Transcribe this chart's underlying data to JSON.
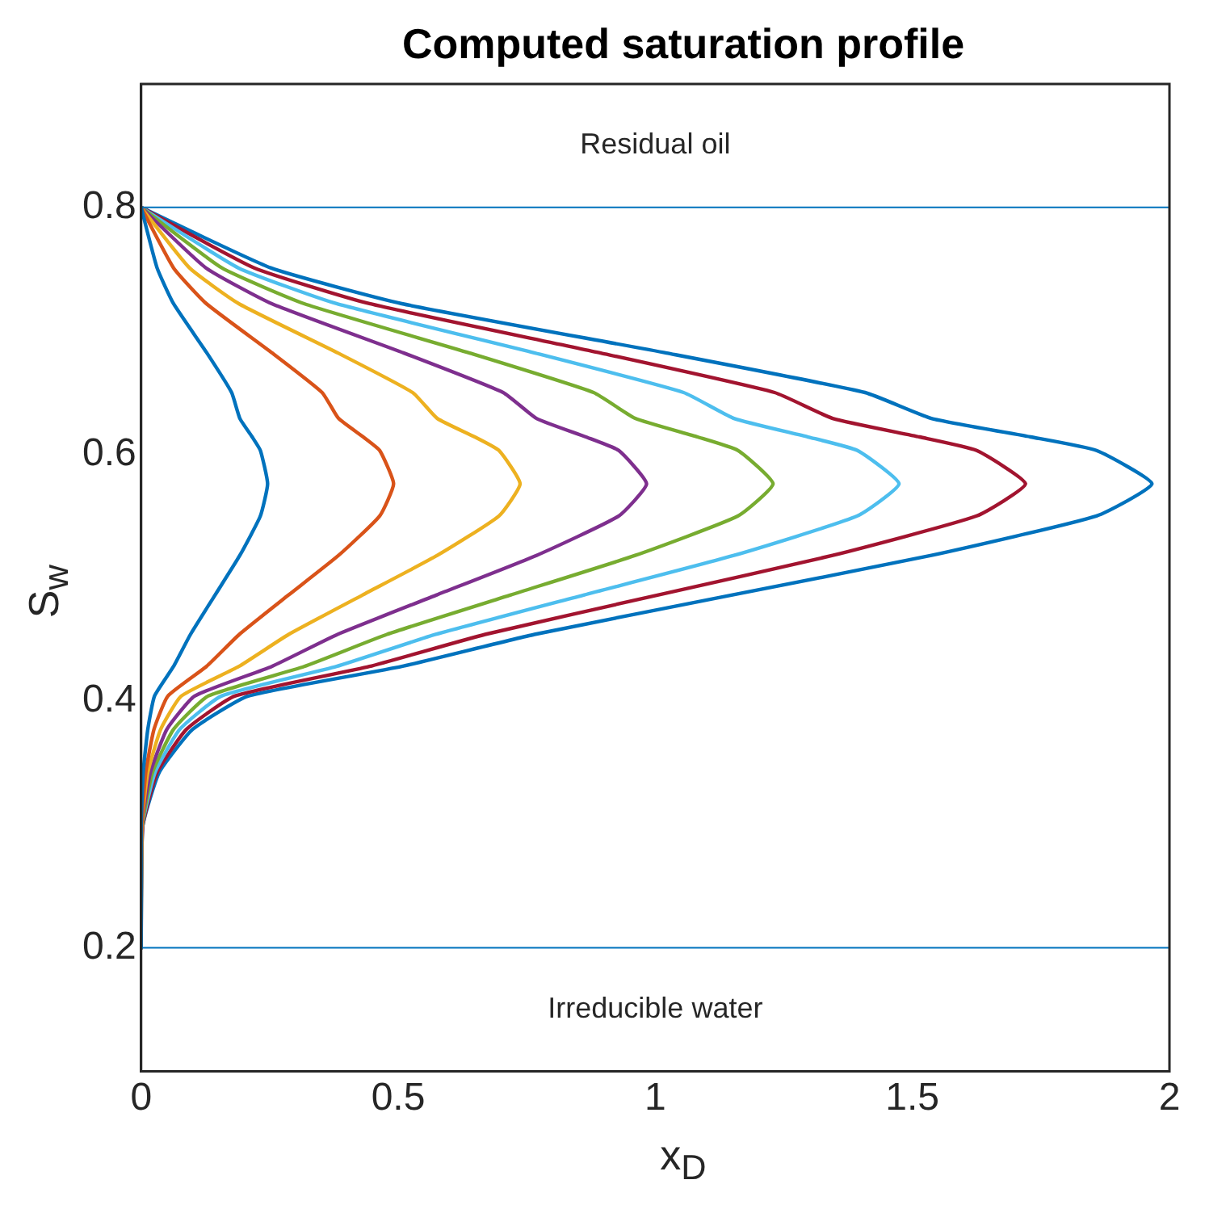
{
  "chart_data": {
    "type": "line",
    "title": "Computed saturation profile",
    "xlabel": "x$_{D}$",
    "ylabel": "S$_{w}$",
    "xlim": [
      0,
      2
    ],
    "xticks": [
      0,
      0.5,
      1,
      1.5,
      2
    ],
    "ylim": [
      0.1,
      0.9
    ],
    "yticks": [
      0.2,
      0.4,
      0.6,
      0.8
    ],
    "grid": false,
    "legend": false,
    "marker": "none",
    "line_style": "solid",
    "ref_lines": [
      {
        "axis": "y",
        "value": 0.8,
        "color": "#0072bd"
      },
      {
        "axis": "y",
        "value": 0.2,
        "color": "#0072bd"
      }
    ],
    "annotations": [
      "Residual oil",
      "Irreducible water"
    ],
    "series": [
      {
        "color": "#0072bd",
        "x": [
          0,
          0.031,
          0.063,
          0.128,
          0.176,
          0.192,
          0.216,
          0.232,
          0.246,
          0.232,
          0.192,
          0.144,
          0.096,
          0.063,
          0.026,
          0.013,
          0.004,
          0,
          0
        ],
        "values": [
          0.8,
          0.751,
          0.722,
          0.682,
          0.65,
          0.629,
          0.614,
          0.603,
          0.576,
          0.55,
          0.518,
          0.486,
          0.454,
          0.428,
          0.404,
          0.377,
          0.342,
          0.298,
          0.2
        ]
      },
      {
        "color": "#d95319",
        "x": [
          0,
          0.063,
          0.127,
          0.255,
          0.352,
          0.384,
          0.432,
          0.464,
          0.491,
          0.464,
          0.384,
          0.287,
          0.191,
          0.127,
          0.052,
          0.025,
          0.009,
          0.001,
          0
        ],
        "values": [
          0.8,
          0.751,
          0.722,
          0.682,
          0.65,
          0.629,
          0.614,
          0.603,
          0.576,
          0.55,
          0.518,
          0.486,
          0.454,
          0.428,
          0.404,
          0.377,
          0.342,
          0.298,
          0.2
        ]
      },
      {
        "color": "#edb120",
        "x": [
          0,
          0.094,
          0.19,
          0.383,
          0.528,
          0.576,
          0.649,
          0.696,
          0.737,
          0.696,
          0.576,
          0.431,
          0.287,
          0.19,
          0.078,
          0.038,
          0.013,
          0.001,
          0
        ],
        "values": [
          0.8,
          0.751,
          0.722,
          0.682,
          0.65,
          0.629,
          0.614,
          0.603,
          0.576,
          0.55,
          0.518,
          0.486,
          0.454,
          0.428,
          0.404,
          0.377,
          0.342,
          0.298,
          0.2
        ]
      },
      {
        "color": "#7e2f8e",
        "x": [
          0,
          0.126,
          0.254,
          0.511,
          0.704,
          0.769,
          0.865,
          0.929,
          0.983,
          0.929,
          0.769,
          0.575,
          0.382,
          0.254,
          0.104,
          0.05,
          0.018,
          0.001,
          0
        ],
        "values": [
          0.8,
          0.751,
          0.722,
          0.682,
          0.65,
          0.629,
          0.614,
          0.603,
          0.576,
          0.55,
          0.518,
          0.486,
          0.454,
          0.428,
          0.404,
          0.377,
          0.342,
          0.298,
          0.2
        ]
      },
      {
        "color": "#77ac30",
        "x": [
          0,
          0.157,
          0.317,
          0.639,
          0.88,
          0.961,
          1.082,
          1.161,
          1.229,
          1.161,
          0.961,
          0.719,
          0.478,
          0.317,
          0.13,
          0.063,
          0.022,
          0.002,
          0
        ],
        "values": [
          0.8,
          0.751,
          0.722,
          0.682,
          0.65,
          0.629,
          0.614,
          0.603,
          0.576,
          0.55,
          0.518,
          0.486,
          0.454,
          0.428,
          0.404,
          0.377,
          0.342,
          0.298,
          0.2
        ]
      },
      {
        "color": "#4dbeee",
        "x": [
          0,
          0.189,
          0.38,
          0.766,
          1.055,
          1.153,
          1.297,
          1.393,
          1.474,
          1.393,
          1.153,
          0.862,
          0.573,
          0.38,
          0.156,
          0.075,
          0.027,
          0.002,
          0
        ],
        "values": [
          0.8,
          0.751,
          0.722,
          0.682,
          0.65,
          0.629,
          0.614,
          0.603,
          0.576,
          0.55,
          0.518,
          0.486,
          0.454,
          0.428,
          0.404,
          0.377,
          0.342,
          0.298,
          0.2
        ]
      },
      {
        "color": "#a2142f",
        "x": [
          0,
          0.22,
          0.444,
          0.894,
          1.232,
          1.345,
          1.514,
          1.625,
          1.72,
          1.625,
          1.345,
          1.006,
          0.669,
          0.444,
          0.182,
          0.088,
          0.031,
          0.003,
          0
        ],
        "values": [
          0.8,
          0.751,
          0.722,
          0.682,
          0.65,
          0.629,
          0.614,
          0.603,
          0.576,
          0.55,
          0.518,
          0.486,
          0.454,
          0.428,
          0.404,
          0.377,
          0.342,
          0.298,
          0.2
        ]
      },
      {
        "color": "#0072bd",
        "x": [
          0,
          0.252,
          0.507,
          1.022,
          1.408,
          1.537,
          1.73,
          1.858,
          1.966,
          1.858,
          1.537,
          1.15,
          0.765,
          0.507,
          0.208,
          0.1,
          0.035,
          0.003,
          0
        ],
        "values": [
          0.8,
          0.751,
          0.722,
          0.682,
          0.65,
          0.629,
          0.614,
          0.603,
          0.576,
          0.55,
          0.518,
          0.486,
          0.454,
          0.428,
          0.404,
          0.377,
          0.342,
          0.298,
          0.2
        ]
      }
    ]
  }
}
